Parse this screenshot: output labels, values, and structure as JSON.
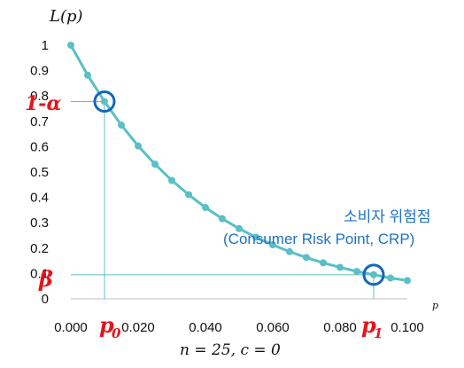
{
  "chart_data": {
    "type": "line",
    "title": "",
    "ylabel": "L(p)",
    "xlabel": "p",
    "subtitle": "n = 25, c = 0",
    "n": 25,
    "c": 0,
    "xlim": [
      0,
      0.1
    ],
    "ylim": [
      0,
      1
    ],
    "x_tick_labels": [
      "0.000",
      "0.020",
      "0.040",
      "0.060",
      "0.080",
      "0.100"
    ],
    "x_tick_values": [
      0.0,
      0.02,
      0.04,
      0.06,
      0.08,
      0.1
    ],
    "y_tick_labels": [
      "0",
      "0.1",
      "0.2",
      "0.3",
      "0.4",
      "0.5",
      "0.6",
      "0.7",
      "0.8",
      "0.9",
      "1"
    ],
    "y_tick_values": [
      0,
      0.1,
      0.2,
      0.3,
      0.4,
      0.5,
      0.6,
      0.7,
      0.8,
      0.9,
      1
    ],
    "grid": false,
    "series_color": "#5bbfc6",
    "marker_color": "#5bbfc6",
    "highlight_color": "#1467b8",
    "annotation_color": "#e5141b",
    "risk_label_color": "#1f72c6",
    "x": [
      0.0,
      0.005,
      0.01,
      0.015,
      0.02,
      0.025,
      0.03,
      0.035,
      0.04,
      0.045,
      0.05,
      0.055,
      0.06,
      0.065,
      0.07,
      0.075,
      0.08,
      0.085,
      0.09,
      0.095,
      0.1
    ],
    "y": [
      1.0,
      0.882,
      0.778,
      0.685,
      0.603,
      0.531,
      0.467,
      0.411,
      0.36,
      0.316,
      0.277,
      0.243,
      0.213,
      0.186,
      0.163,
      0.142,
      0.124,
      0.108,
      0.095,
      0.082,
      0.072
    ],
    "highlights": [
      {
        "x": 0.01,
        "y": 0.778
      },
      {
        "x": 0.09,
        "y": 0.095
      }
    ],
    "annotations": {
      "one_minus_alpha": "1-α",
      "beta": "β",
      "p0_main": "p",
      "p0_sub": "0",
      "p1_main": "p",
      "p1_sub": "1",
      "crp_korean": "소비자 위험점",
      "crp_english": "(Consumer Risk Point, CRP)"
    }
  }
}
